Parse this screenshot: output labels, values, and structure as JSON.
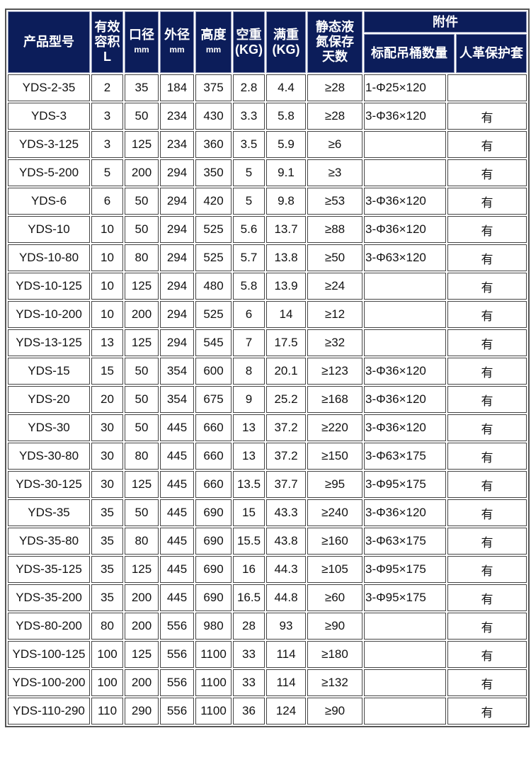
{
  "header": {
    "model": "产品型号",
    "volume": [
      "有效",
      "容积",
      "L"
    ],
    "mouth": "口径",
    "outer": "外径",
    "height": "高度",
    "unit_mm": "mm",
    "empty": "空重",
    "full": "满重",
    "unit_kg": "(KG)",
    "storage": [
      "静态液",
      "氮保存",
      "天数"
    ],
    "accessories": "附件",
    "canisters": "标配吊桶数量",
    "cover": "人革保护套"
  },
  "rows": [
    [
      "YDS-2-35",
      "2",
      "35",
      "184",
      "375",
      "2.8",
      "4.4",
      "≥28",
      "1-Φ25×120",
      ""
    ],
    [
      "YDS-3",
      "3",
      "50",
      "234",
      "430",
      "3.3",
      "5.8",
      "≥28",
      "3-Φ36×120",
      "有"
    ],
    [
      "YDS-3-125",
      "3",
      "125",
      "234",
      "360",
      "3.5",
      "5.9",
      "≥6",
      "",
      "有"
    ],
    [
      "YDS-5-200",
      "5",
      "200",
      "294",
      "350",
      "5",
      "9.1",
      "≥3",
      "",
      "有"
    ],
    [
      "YDS-6",
      "6",
      "50",
      "294",
      "420",
      "5",
      "9.8",
      "≥53",
      "3-Φ36×120",
      "有"
    ],
    [
      "YDS-10",
      "10",
      "50",
      "294",
      "525",
      "5.6",
      "13.7",
      "≥88",
      "3-Φ36×120",
      "有"
    ],
    [
      "YDS-10-80",
      "10",
      "80",
      "294",
      "525",
      "5.7",
      "13.8",
      "≥50",
      "3-Φ63×120",
      "有"
    ],
    [
      "YDS-10-125",
      "10",
      "125",
      "294",
      "480",
      "5.8",
      "13.9",
      "≥24",
      "",
      "有"
    ],
    [
      "YDS-10-200",
      "10",
      "200",
      "294",
      "525",
      "6",
      "14",
      "≥12",
      "",
      "有"
    ],
    [
      "YDS-13-125",
      "13",
      "125",
      "294",
      "545",
      "7",
      "17.5",
      "≥32",
      "",
      "有"
    ],
    [
      "YDS-15",
      "15",
      "50",
      "354",
      "600",
      "8",
      "20.1",
      "≥123",
      "3-Φ36×120",
      "有"
    ],
    [
      "YDS-20",
      "20",
      "50",
      "354",
      "675",
      "9",
      "25.2",
      "≥168",
      "3-Φ36×120",
      "有"
    ],
    [
      "YDS-30",
      "30",
      "50",
      "445",
      "660",
      "13",
      "37.2",
      "≥220",
      "3-Φ36×120",
      "有"
    ],
    [
      "YDS-30-80",
      "30",
      "80",
      "445",
      "660",
      "13",
      "37.2",
      "≥150",
      "3-Φ63×175",
      "有"
    ],
    [
      "YDS-30-125",
      "30",
      "125",
      "445",
      "660",
      "13.5",
      "37.7",
      "≥95",
      "3-Φ95×175",
      "有"
    ],
    [
      "YDS-35",
      "35",
      "50",
      "445",
      "690",
      "15",
      "43.3",
      "≥240",
      "3-Φ36×120",
      "有"
    ],
    [
      "YDS-35-80",
      "35",
      "80",
      "445",
      "690",
      "15.5",
      "43.8",
      "≥160",
      "3-Φ63×175",
      "有"
    ],
    [
      "YDS-35-125",
      "35",
      "125",
      "445",
      "690",
      "16",
      "44.3",
      "≥105",
      "3-Φ95×175",
      "有"
    ],
    [
      "YDS-35-200",
      "35",
      "200",
      "445",
      "690",
      "16.5",
      "44.8",
      "≥60",
      "3-Φ95×175",
      "有"
    ],
    [
      "YDS-80-200",
      "80",
      "200",
      "556",
      "980",
      "28",
      "93",
      "≥90",
      "",
      "有"
    ],
    [
      "YDS-100-125",
      "100",
      "125",
      "556",
      "1100",
      "33",
      "114",
      "≥180",
      "",
      "有"
    ],
    [
      "YDS-100-200",
      "100",
      "200",
      "556",
      "1100",
      "33",
      "114",
      "≥132",
      "",
      "有"
    ],
    [
      "YDS-110-290",
      "110",
      "290",
      "556",
      "1100",
      "36",
      "124",
      "≥90",
      "",
      "有"
    ]
  ]
}
